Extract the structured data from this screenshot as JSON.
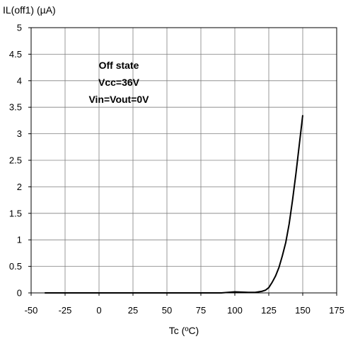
{
  "chart_data": {
    "type": "line",
    "title": "",
    "ylabel": "IL(off1) (µA)",
    "xlabel": "Tc (ºC)",
    "xlim": [
      -50,
      175
    ],
    "ylim": [
      0,
      5
    ],
    "xticks": [
      "-50",
      "-25",
      "0",
      "25",
      "50",
      "75",
      "100",
      "125",
      "150",
      "175"
    ],
    "yticks": [
      "0",
      "0.5",
      "1",
      "1.5",
      "2",
      "2.5",
      "3",
      "3.5",
      "4",
      "4.5",
      "5"
    ],
    "grid": true,
    "annotation": [
      "Off state",
      "Vcc=36V",
      "Vin=Vout=0V"
    ],
    "series": [
      {
        "x": [
          -40,
          0,
          50,
          90,
          100,
          110,
          115,
          120,
          122.5,
          125,
          127.5,
          130,
          132.5,
          135,
          137.5,
          140,
          142.5,
          145,
          147.5,
          150
        ],
        "y": [
          0.0,
          0.0,
          0.0,
          0.0,
          0.02,
          0.01,
          0.01,
          0.03,
          0.05,
          0.1,
          0.2,
          0.32,
          0.48,
          0.7,
          0.95,
          1.3,
          1.75,
          2.25,
          2.8,
          3.35
        ]
      }
    ]
  }
}
